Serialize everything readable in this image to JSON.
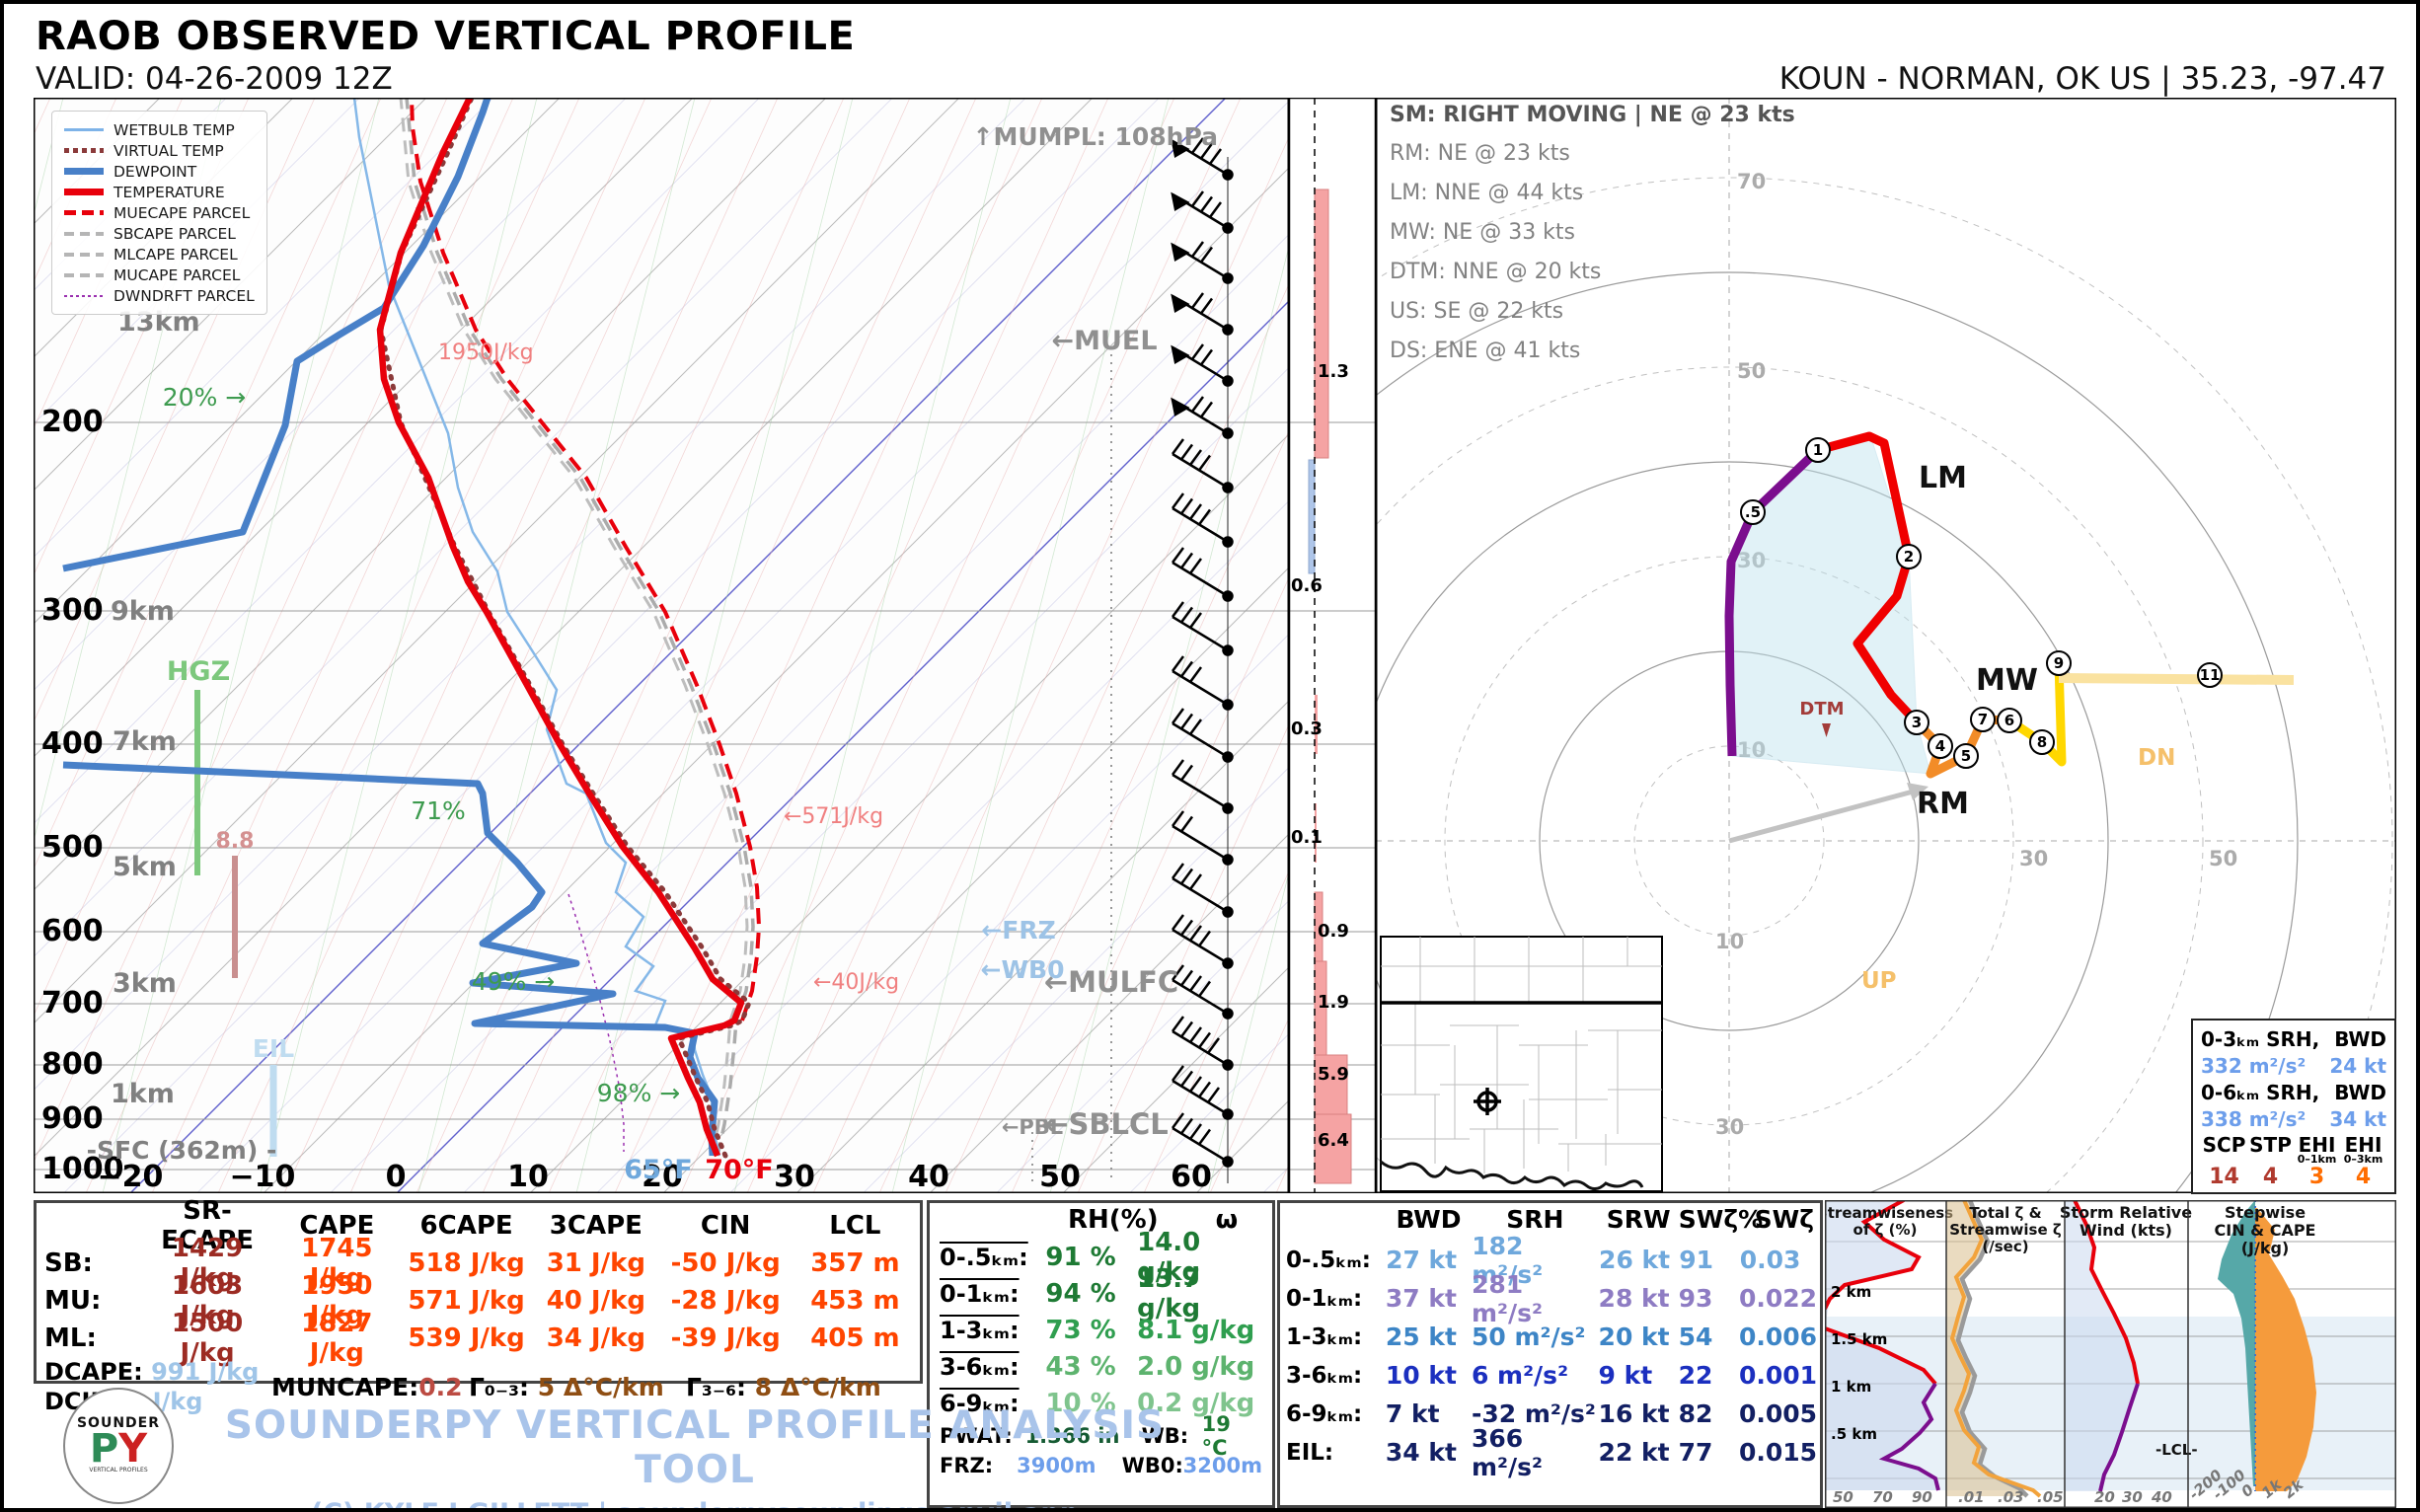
{
  "header": {
    "title": "RAOB OBSERVED VERTICAL PROFILE",
    "valid": "VALID: 04-26-2009 12Z",
    "station": "KOUN - NORMAN, OK US | 35.23, -97.47"
  },
  "legend": {
    "items": [
      "WETBULB TEMP",
      "VIRTUAL TEMP",
      "DEWPOINT",
      "TEMPERATURE",
      "MUECAPE PARCEL",
      "SBCAPE PARCEL",
      "MLCAPE PARCEL",
      "MUCAPE PARCEL",
      "DWNDRFT PARCEL"
    ]
  },
  "skewt": {
    "pressures": [
      "200",
      "300",
      "400",
      "500",
      "600",
      "700",
      "800",
      "900",
      "1000"
    ],
    "heights": [
      "13km",
      "9km",
      "7km",
      "5km",
      "3km",
      "1km"
    ],
    "sfc_label": "-SFC (362m) -",
    "xticks": [
      "−20",
      "−10",
      "0",
      "10",
      "20",
      "30",
      "40",
      "50",
      "60"
    ],
    "ann": {
      "mumpl": "↑MUMPL: 108hPa",
      "muel": "←MUEL",
      "mulfc": "←MULFC",
      "sblcl": "←SBLCL",
      "pbl": "←PBL",
      "frz": "←FRZ",
      "wb0": "←WB0",
      "rh20": "20% →",
      "rh71": "71%",
      "rh49": "49% →",
      "rh98": "98% →",
      "cape1950": "1950J/kg",
      "cape571": "←571J/kg",
      "cape40": "←40J/kg",
      "hgz": "HGZ",
      "lr88": "8.8",
      "eil": "EIL",
      "t65": "65°F",
      "t70": "70°F"
    }
  },
  "strip": {
    "labels": [
      "1.3",
      "0.6",
      "0.3",
      "0.1",
      "0.9",
      "1.9",
      "5.9",
      "6.4"
    ]
  },
  "hodo": {
    "sm": "SM: RIGHT MOVING | NE @ 23 kts",
    "lines": [
      "RM: NE @ 23 kts",
      "LM: NNE @ 44 kts",
      "MW: NE @ 33 kts",
      "DTM: NNE @ 20 kts",
      "US: SE @ 22 kts",
      "DS: ENE @ 41 kts"
    ],
    "rings": [
      "10",
      "30",
      "50",
      "70"
    ],
    "markers": [
      ".5",
      "1",
      "2",
      "3",
      "4",
      "5",
      "6",
      "7",
      "8",
      "9",
      "11"
    ],
    "labels": {
      "lm": "LM",
      "rm": "RM",
      "mw": "MW",
      "dtm": "DTM",
      "up": "UP",
      "dn": "DN"
    }
  },
  "srh_box": {
    "r1l": "0-3ₖₘ SRH,",
    "r1r": "BWD",
    "r2l": "332 m²/s²",
    "r2r": "24 kt",
    "r3l": "0-6ₖₘ SRH,",
    "r3r": "BWD",
    "r4l": "338 m²/s²",
    "r4r": "34 kt",
    "h": [
      "SCP",
      "STP",
      "EHI",
      "EHI"
    ],
    "sub1": "0–1km",
    "sub2": "0–3km",
    "v": [
      "14",
      "4",
      "3",
      "4"
    ]
  },
  "thermo": {
    "headers": [
      "SR-ECAPE",
      "CAPE",
      "6CAPE",
      "3CAPE",
      "CIN",
      "LCL"
    ],
    "rows": [
      {
        "label": "SB:",
        "v": [
          "1429 J/kg",
          "1745 J/kg",
          "518 J/kg",
          "31 J/kg",
          "-50 J/kg",
          "357 m"
        ]
      },
      {
        "label": "MU:",
        "v": [
          "1603 J/kg",
          "1950 J/kg",
          "571 J/kg",
          "40 J/kg",
          "-28 J/kg",
          "453 m"
        ]
      },
      {
        "label": "ML:",
        "v": [
          "1500 J/kg",
          "1827 J/kg",
          "539 J/kg",
          "34 J/kg",
          "-39 J/kg",
          "405 m"
        ]
      }
    ],
    "dcape_l": "DCAPE:",
    "dcape_v": "991 J/kg",
    "dcin_l": "DCIN:",
    "dcin_v": "0 J/kg",
    "muncape_l": "MUNCAPE:",
    "muncape_v": "0.2",
    "lr03_l": "Γ₀₋₃:",
    "lr03_v": "5 Δ°C/km",
    "lr36_l": "Γ₃₋₆:",
    "lr36_v": "8 Δ°C/km"
  },
  "moisture": {
    "h1": "RH(%)",
    "h2": "ω",
    "rows": [
      {
        "label": "0-.5ₖₘ:",
        "rh": "91 %",
        "mr": "14.0 g/kg"
      },
      {
        "label": "0-1ₖₘ:",
        "rh": "94 %",
        "mr": "13.7 g/kg"
      },
      {
        "label": "1-3ₖₘ:",
        "rh": "73 %",
        "mr": "8.1 g/kg"
      },
      {
        "label": "3-6ₖₘ:",
        "rh": "43 %",
        "mr": "2.0 g/kg"
      },
      {
        "label": "6-9ₖₘ:",
        "rh": "10 %",
        "mr": "0.2 g/kg"
      }
    ],
    "pwat_l": "PWAT:",
    "pwat_v": "1.366 in",
    "wb_l": "WB:",
    "wb_v": "19 °C",
    "frz_l": "FRZ:",
    "frz_v": "3900m",
    "wb0_l": "WB0:",
    "wb0_v": "3200m"
  },
  "shear": {
    "headers": [
      "BWD",
      "SRH",
      "SRW",
      "SWζ%",
      "SWζ"
    ],
    "rows": [
      {
        "label": "0-.5ₖₘ:",
        "v": [
          "27 kt",
          "182 m²/s²",
          "26 kt",
          "91",
          "0.03"
        ]
      },
      {
        "label": "0-1ₖₘ:",
        "v": [
          "37 kt",
          "281 m²/s²",
          "28 kt",
          "93",
          "0.022"
        ]
      },
      {
        "label": "1-3ₖₘ:",
        "v": [
          "25 kt",
          "50 m²/s²",
          "20 kt",
          "54",
          "0.006"
        ]
      },
      {
        "label": "3-6ₖₘ:",
        "v": [
          "10 kt",
          "6 m²/s²",
          "9 kt",
          "22",
          "0.001"
        ]
      },
      {
        "label": "6-9ₖₘ:",
        "v": [
          "7 kt",
          "-32 m²/s²",
          "16 kt",
          "82",
          "0.005"
        ]
      },
      {
        "label": "EIL:",
        "v": [
          "34 kt",
          "366 m²/s²",
          "22 kt",
          "77",
          "0.015"
        ]
      }
    ]
  },
  "panels": {
    "p1": {
      "t1": "Streamwiseness",
      "t2": "of ζ (%)",
      "ticks": [
        "50",
        "70",
        "90"
      ],
      "ylabels": [
        "2 km",
        "1.5 km",
        "1 km",
        ".5 km"
      ]
    },
    "p2": {
      "t1": "Total ζ &",
      "t2": "Streamwise ζ",
      "t3": "(/sec)",
      "ticks": [
        ".01",
        ".03",
        ".05"
      ]
    },
    "p3": {
      "t1": "Storm Relative",
      "t2": "Wind (kts)",
      "ticks": [
        "20",
        "30",
        "40"
      ],
      "lcl": "-LCL-"
    },
    "p4": {
      "t1": "Stepwise",
      "t2": "CIN & CAPE",
      "t3": "(J/kg)",
      "ticks": [
        "-200",
        "-100",
        "0",
        "1k",
        "2k"
      ]
    }
  },
  "footer": {
    "line1": "SOUNDERPY VERTICAL PROFILE ANALYSIS TOOL",
    "line2": "(C) KYLE J GILLETT | sounderpysoundings.anvil.app",
    "logo_top": "SOUNDER",
    "logo_p": "P",
    "logo_y": "Y",
    "logo_b": "VERTICAL PROFILES"
  },
  "chart_data": {
    "type": "skewt_hodograph_composite",
    "title": "RAOB OBSERVED VERTICAL PROFILE",
    "valid": "04-26-2009 12Z",
    "station": {
      "id_name": "KOUN - NORMAN, OK US",
      "lat": 35.23,
      "lon": -97.47
    },
    "storm_motions_kts": {
      "SM": {
        "dir": "NE",
        "spd": 23,
        "note": "RIGHT MOVING"
      },
      "RM": {
        "dir": "NE",
        "spd": 23
      },
      "LM": {
        "dir": "NNE",
        "spd": 44
      },
      "MW": {
        "dir": "NE",
        "spd": 33
      },
      "DTM": {
        "dir": "NNE",
        "spd": 20
      },
      "US": {
        "dir": "SE",
        "spd": 22
      },
      "DS": {
        "dir": "ENE",
        "spd": 41
      }
    },
    "srh_bwd": {
      "0-3km": {
        "srh_m2s2": 332,
        "bwd_kt": 24
      },
      "0-6km": {
        "srh_m2s2": 338,
        "bwd_kt": 34
      }
    },
    "composite_indices": {
      "SCP": 14,
      "STP": 4,
      "EHI_0-1km": 3,
      "EHI_0-3km": 4
    },
    "parcels": {
      "columns": [
        "SR-ECAPE_Jkg",
        "CAPE_Jkg",
        "6CAPE_Jkg",
        "3CAPE_Jkg",
        "CIN_Jkg",
        "LCL_m"
      ],
      "SB": [
        1429,
        1745,
        518,
        31,
        -50,
        357
      ],
      "MU": [
        1603,
        1950,
        571,
        40,
        -28,
        453
      ],
      "ML": [
        1500,
        1827,
        539,
        34,
        -39,
        405
      ],
      "DCAPE_Jkg": 991,
      "DCIN_Jkg": 0,
      "MUNCAPE": 0.2
    },
    "lapse_rates_C_per_km": {
      "0-3km": 5,
      "3-6km": 8
    },
    "moisture": {
      "layers": [
        "0-0.5km",
        "0-1km",
        "1-3km",
        "3-6km",
        "6-9km"
      ],
      "RH_pct": [
        91,
        94,
        73,
        43,
        10
      ],
      "mixing_ratio_gkg": [
        14.0,
        13.7,
        8.1,
        2.0,
        0.2
      ],
      "PWAT_in": 1.366,
      "WB_C": 19,
      "FRZ_m": 3900,
      "WB0_m": 3200
    },
    "shear": {
      "layers": [
        "0-0.5km",
        "0-1km",
        "1-3km",
        "3-6km",
        "6-9km",
        "EIL"
      ],
      "BWD_kt": [
        27,
        37,
        25,
        10,
        7,
        34
      ],
      "SRH_m2s2": [
        182,
        281,
        50,
        6,
        -32,
        366
      ],
      "SRW_kt": [
        26,
        28,
        20,
        9,
        16,
        22
      ],
      "SWzeta_pct": [
        91,
        93,
        54,
        22,
        82,
        77
      ],
      "SWzeta_per_s": [
        0.03,
        0.022,
        0.006,
        0.001,
        0.005,
        0.015
      ]
    },
    "levels": {
      "MUMPL_hPa": 108,
      "SFC_m": 362,
      "surface_temp_F": 70,
      "surface_wetbulb_F": 65
    },
    "skewt_rh_annotations_pct": [
      20,
      71,
      49,
      98
    ],
    "cape_annotations_Jkg": [
      1950,
      571,
      40
    ],
    "omega_strip_values": [
      1.3,
      0.6,
      0.3,
      0.1,
      0.9,
      1.9,
      5.9,
      6.4
    ],
    "hodograph": {
      "ring_interval_kt": 10,
      "labeled_rings_kt": [
        10,
        30,
        50,
        70
      ],
      "height_markers_km": [
        0.5,
        1,
        2,
        3,
        4,
        5,
        6,
        7,
        8,
        9,
        11
      ]
    }
  }
}
